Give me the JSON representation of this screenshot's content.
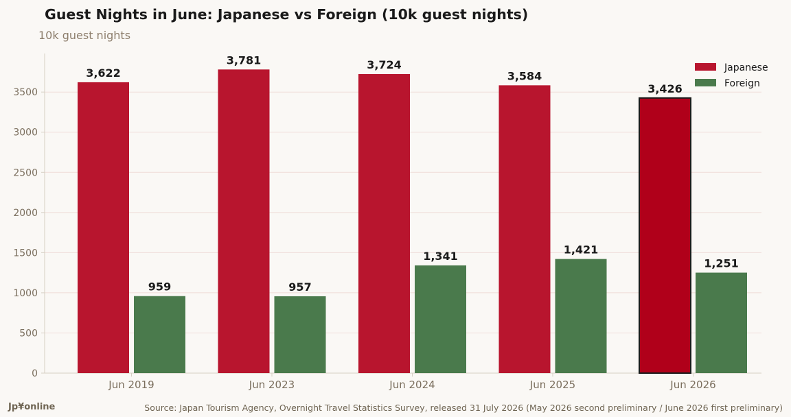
{
  "header": {
    "title": "Guest Nights in June: Japanese vs Foreign (10k guest nights)",
    "subtitle": "10k guest nights"
  },
  "footer": {
    "brand": "Jp¥online",
    "source": "Source: Japan Tourism Agency, Overnight Travel Statistics Survey, released 31 July 2026 (May 2026 second preliminary / June 2026 first preliminary)"
  },
  "colors": {
    "japanese": "#b8152e",
    "japanese_highlight": "#b0001a",
    "foreign": "#4a7a4c",
    "grid": "#efdcd8",
    "axis": "#d6cfc4",
    "tick_text": "#7a6e5d",
    "label_text": "#1a1a1a"
  },
  "chart_data": {
    "type": "bar",
    "title": "Guest Nights in June: Japanese vs Foreign (10k guest nights)",
    "ylabel": "10k guest nights",
    "xlabel": "",
    "categories": [
      "Jun 2019",
      "Jun 2023",
      "Jun 2024",
      "Jun 2025",
      "Jun 2026"
    ],
    "series": [
      {
        "name": "Japanese",
        "values": [
          3622,
          3781,
          3724,
          3584,
          3426
        ],
        "labels": [
          "3,622",
          "3,781",
          "3,724",
          "3,584",
          "3,426"
        ]
      },
      {
        "name": "Foreign",
        "values": [
          959,
          957,
          1341,
          1421,
          1251
        ],
        "labels": [
          "959",
          "957",
          "1,341",
          "1,421",
          "1,251"
        ]
      }
    ],
    "highlight_category": "Jun 2026",
    "ylim": [
      0,
      3980
    ],
    "yticks": [
      0,
      500,
      1000,
      1500,
      2000,
      2500,
      3000,
      3500
    ],
    "grid": true,
    "legend_position": "top-right"
  }
}
